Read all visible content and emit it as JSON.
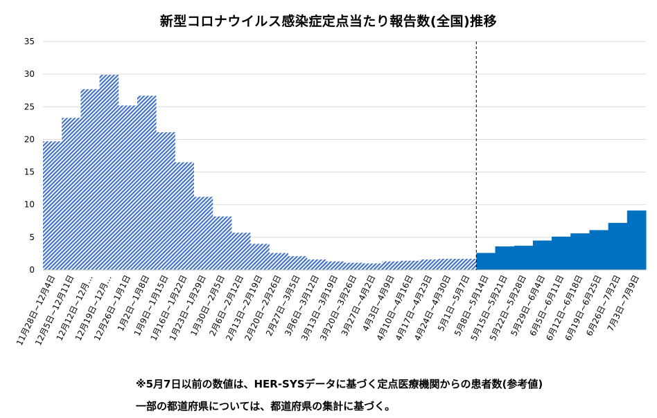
{
  "chart_data": {
    "type": "bar",
    "title": "新型コロナウイルス感染症定点当たり報告数(全国)推移",
    "ylim": [
      0,
      35
    ],
    "yticks": [
      0,
      5,
      10,
      15,
      20,
      25,
      30,
      35
    ],
    "grid": true,
    "categories": [
      "11月28日~12月4日",
      "12月5日~12月11日",
      "12月12日~12月…",
      "12月19日~12月…",
      "12月26日~1月1日",
      "1月2日~1月8日",
      "1月9日~1月15日",
      "1月16日~1月22日",
      "1月23日~1月29日",
      "1月30日~2月5日",
      "2月6日~2月12日",
      "2月13日~2月19日",
      "2月20日~2月26日",
      "2月27日~3月5日",
      "3月6日~3月12日",
      "3月13日~3月19日",
      "3月20日~3月26日",
      "3月27日~4月2日",
      "4月3日~4月9日",
      "4月10日~4月16日",
      "4月17日~4月23日",
      "4月24日~4月30日",
      "5月1日~5月7日",
      "5月8日~5月14日",
      "5月15日~5月21日",
      "5月22日~5月28日",
      "5月29日~6月4日",
      "6月5日~6月11日",
      "6月12日~6月18日",
      "6月19日~6月25日",
      "6月26日~7月2日",
      "7月3日~7月9日"
    ],
    "values": [
      19.7,
      23.3,
      27.7,
      29.9,
      25.2,
      26.7,
      21.1,
      16.5,
      11.2,
      8.2,
      5.7,
      4.0,
      2.6,
      2.1,
      1.6,
      1.3,
      1.1,
      1.0,
      1.3,
      1.4,
      1.6,
      1.7,
      1.7,
      2.6,
      3.6,
      3.7,
      4.5,
      5.1,
      5.6,
      6.1,
      7.2,
      9.1
    ],
    "series_styles": [
      {
        "from_index": 0,
        "to_index": 22,
        "style": "hatched",
        "color": "#4472c4"
      },
      {
        "from_index": 23,
        "to_index": 31,
        "style": "solid",
        "color": "#0070c0"
      }
    ],
    "divider_after_category": "5月1日~5月7日"
  },
  "notes": [
    "※5月7日以前の数値は、HER-SYSデータに基づく定点医療機関からの患者数(参考値)",
    "一部の都道府県については、都道府県の集計に基づく。"
  ]
}
